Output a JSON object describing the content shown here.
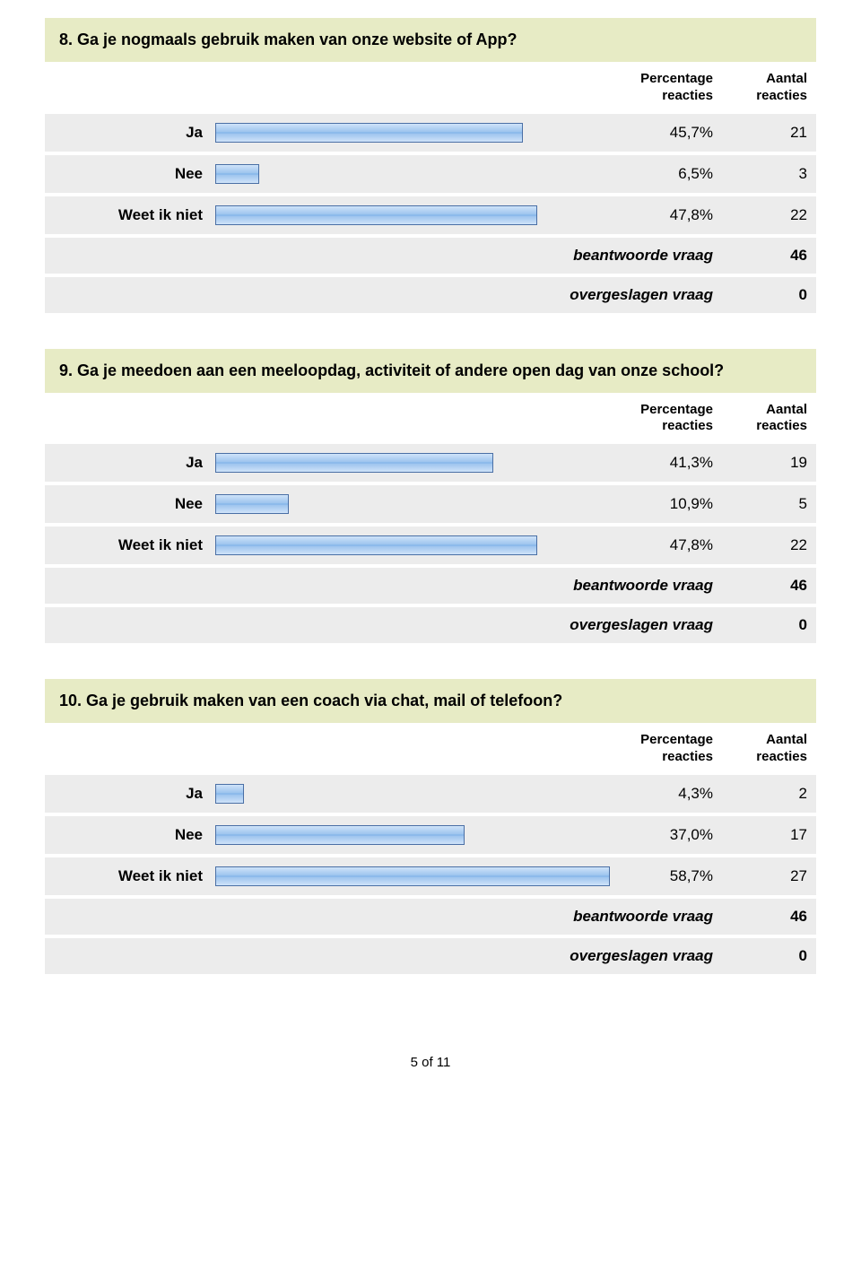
{
  "bar_max_pct": 60,
  "column_headers": {
    "percentage_l1": "Percentage",
    "percentage_l2": "reacties",
    "count_l1": "Aantal",
    "count_l2": "reacties"
  },
  "summary_labels": {
    "answered": "beantwoorde vraag",
    "skipped": "overgeslagen vraag"
  },
  "questions": [
    {
      "title": "8. Ga je nogmaals gebruik maken van onze website of App?",
      "rows": [
        {
          "label": "Ja",
          "pct": "45,7%",
          "pct_num": 45.7,
          "count": "21"
        },
        {
          "label": "Nee",
          "pct": "6,5%",
          "pct_num": 6.5,
          "count": "3"
        },
        {
          "label": "Weet ik niet",
          "pct": "47,8%",
          "pct_num": 47.8,
          "count": "22"
        }
      ],
      "answered": "46",
      "skipped": "0"
    },
    {
      "title": "9. Ga je meedoen aan een meeloopdag, activiteit of andere open dag van onze school?",
      "rows": [
        {
          "label": "Ja",
          "pct": "41,3%",
          "pct_num": 41.3,
          "count": "19"
        },
        {
          "label": "Nee",
          "pct": "10,9%",
          "pct_num": 10.9,
          "count": "5"
        },
        {
          "label": "Weet ik niet",
          "pct": "47,8%",
          "pct_num": 47.8,
          "count": "22"
        }
      ],
      "answered": "46",
      "skipped": "0"
    },
    {
      "title": "10. Ga je gebruik maken van een coach via chat, mail of telefoon?",
      "rows": [
        {
          "label": "Ja",
          "pct": "4,3%",
          "pct_num": 4.3,
          "count": "2"
        },
        {
          "label": "Nee",
          "pct": "37,0%",
          "pct_num": 37.0,
          "count": "17"
        },
        {
          "label": "Weet ik niet",
          "pct": "58,7%",
          "pct_num": 58.7,
          "count": "27"
        }
      ],
      "answered": "46",
      "skipped": "0"
    }
  ],
  "footer": "5 of 11"
}
